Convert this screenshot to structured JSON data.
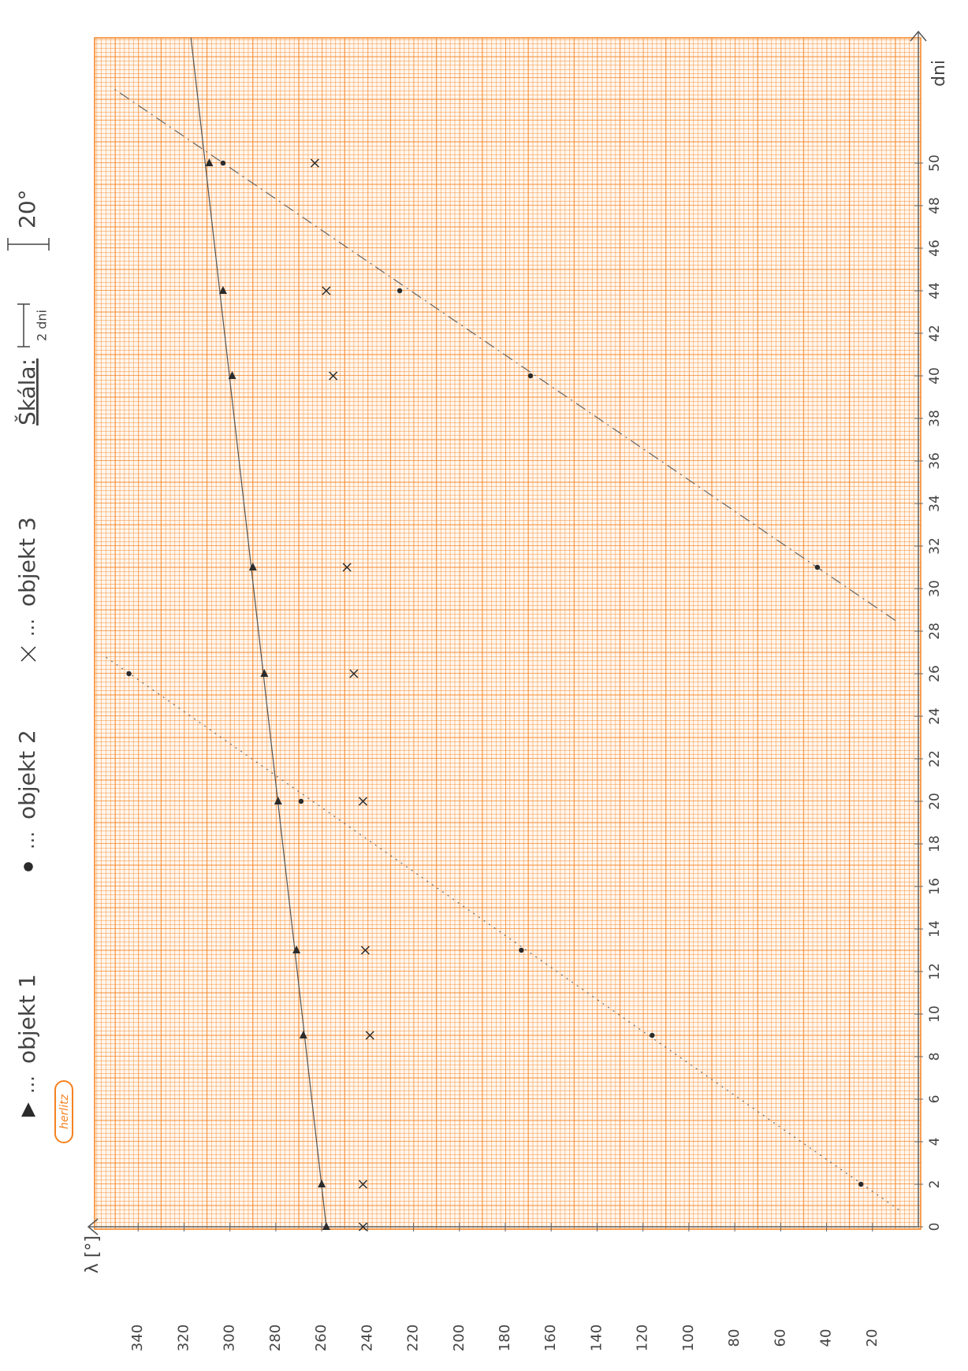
{
  "chart_data": {
    "type": "scatter",
    "x_label": "dni",
    "y_label": "λ [°]",
    "legend_separator": "...",
    "scale_note": {
      "title": "Škála:",
      "x_unit": "2 dni",
      "y_unit": "20°"
    },
    "brand": "herlitz",
    "xlim": [
      0,
      56
    ],
    "ylim": [
      0,
      360
    ],
    "xticks": [
      0,
      2,
      4,
      6,
      8,
      10,
      12,
      14,
      16,
      18,
      20,
      22,
      24,
      26,
      28,
      30,
      32,
      34,
      36,
      38,
      40,
      42,
      44,
      46,
      48,
      50
    ],
    "yticks": [
      20,
      40,
      60,
      80,
      100,
      120,
      140,
      160,
      180,
      200,
      220,
      240,
      260,
      280,
      300,
      320,
      340
    ],
    "grid": true,
    "series": [
      {
        "name": "objekt 1",
        "marker": "triangle",
        "color": "#2b2b2b",
        "x": [
          0,
          2,
          9,
          13,
          20,
          26,
          31,
          40,
          44,
          50
        ],
        "values": [
          258,
          260,
          268,
          271,
          279,
          285,
          290,
          299,
          303,
          309
        ]
      },
      {
        "name": "objekt 2",
        "marker": "dot",
        "color": "#2b2b2b",
        "x": [
          2,
          9,
          13,
          20,
          26,
          31,
          40,
          44,
          50
        ],
        "values": [
          25,
          116,
          173,
          269,
          344,
          44,
          169,
          226,
          303
        ]
      },
      {
        "name": "objekt 3",
        "marker": "cross",
        "color": "#2b2b2b",
        "x": [
          0,
          2,
          9,
          13,
          20,
          26,
          31,
          40,
          44,
          50
        ],
        "values": [
          242,
          242,
          239,
          241,
          242,
          246,
          249,
          255,
          258,
          263
        ]
      }
    ],
    "trend_lines": [
      {
        "color": "#555555",
        "dash": "solid",
        "x": [
          0,
          55.9
        ],
        "values": [
          258,
          317
        ]
      },
      {
        "color": "#666666",
        "dash": "dotted",
        "x": [
          0.8,
          26.85
        ],
        "values": [
          8.5,
          355
        ]
      },
      {
        "color": "#666666",
        "dash": "dashdot",
        "x": [
          28.5,
          53.6
        ],
        "values": [
          10,
          352
        ]
      }
    ]
  }
}
